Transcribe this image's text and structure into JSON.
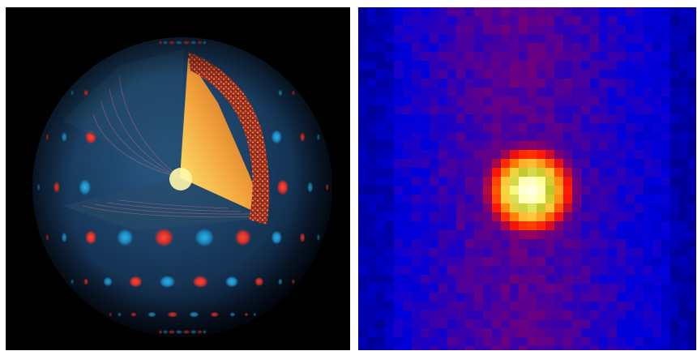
{
  "figure": {
    "panels": [
      {
        "id": "stellar-oscillation-cutaway",
        "background": "#000000",
        "palette": {
          "red_lobe": "#e0342c",
          "blue_lobe": "#1b8fc6",
          "sphere_base": "#1a3a5c",
          "core_light": "#fff27a",
          "core_mid": "#f2a13a",
          "core_dark": "#a8451e",
          "granulation": "#8a2a1a"
        }
      },
      {
        "id": "xray-point-source-heatmap",
        "background": "#00009a",
        "palette": {
          "background_blue": "#0000c8",
          "mid_purple": "#5a0090",
          "ring_red": "#ff1a00",
          "ring_orange": "#ff7a00",
          "halo_yellow": "#ffd84a",
          "core_white": "#ffffe0"
        }
      }
    ]
  }
}
